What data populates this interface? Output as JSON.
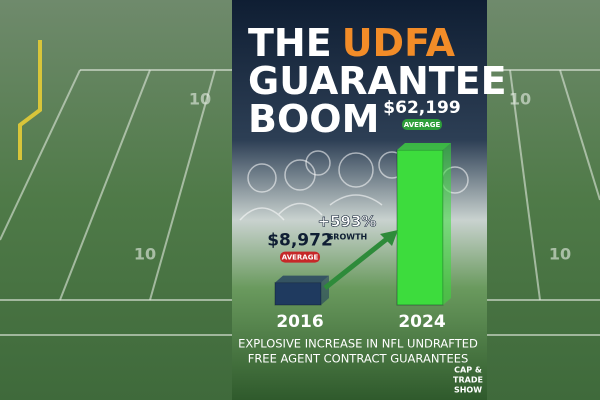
{
  "chart_data": {
    "type": "bar",
    "title": [
      "THE",
      "UDFA",
      "GUARANTEE",
      "BOOM"
    ],
    "title_colors": [
      "#ffffff",
      "#f28c28",
      "#ffffff",
      "#ffffff"
    ],
    "categories": [
      "2016",
      "2024"
    ],
    "values": [
      8972,
      62199
    ],
    "value_labels": [
      "$8,972",
      "$62,199"
    ],
    "value_tags": [
      "AVERAGE",
      "AVERAGE"
    ],
    "tag_colors": [
      "#c62828",
      "#2e9e3a"
    ],
    "colors": [
      "#1f3a5f",
      "#3ddc3d"
    ],
    "annotations": [
      "+593%",
      "GROWTH"
    ],
    "subtitle": [
      "EXPLOSIVE INCREASE IN NFL UNDRAFTED",
      "FREE AGENT CONTRACT GUARANTEES"
    ]
  },
  "logo": [
    "CAP &",
    "TRADE",
    "SHOW"
  ],
  "background_yard_numbers": [
    "10",
    "10",
    "10",
    "10"
  ]
}
